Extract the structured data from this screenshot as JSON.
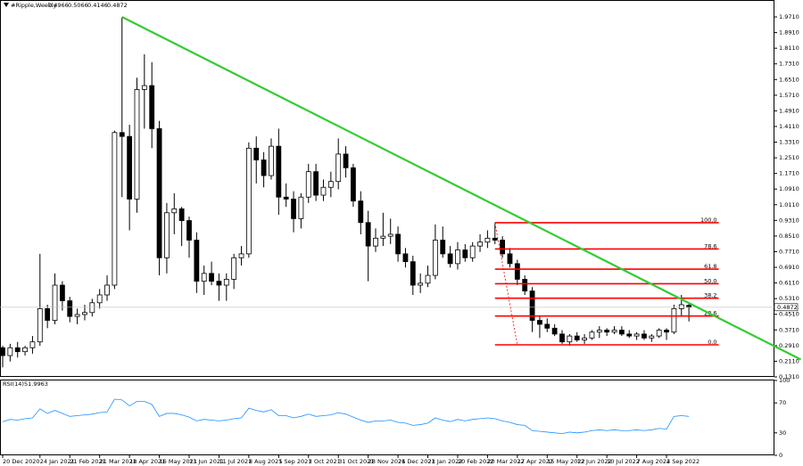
{
  "chart_data": {
    "type": "candlestick",
    "symbol": "#Ripple,Weekly",
    "categories": [
      "20 Dec 2020",
      null,
      null,
      null,
      null,
      "24 Jan 2021",
      null,
      null,
      null,
      "21 Feb 2021",
      null,
      null,
      null,
      "21 Mar 2021",
      null,
      null,
      null,
      "18 Apr 2021",
      null,
      null,
      null,
      "16 May 2021",
      null,
      null,
      null,
      "13 Jun 2021",
      null,
      null,
      null,
      "11 Jul 2021",
      null,
      null,
      null,
      "8 Aug 2021",
      null,
      null,
      null,
      "5 Sep 2021",
      null,
      null,
      null,
      "3 Oct 2021",
      null,
      null,
      null,
      "31 Oct 2021",
      null,
      null,
      null,
      "28 Nov 2021",
      null,
      null,
      null,
      "26 Dec 2021",
      null,
      null,
      null,
      "23 Jan 2022",
      null,
      null,
      null,
      "20 Feb 2022",
      null,
      null,
      null,
      "20 Mar 2022",
      null,
      null,
      null,
      "17 Apr 2022",
      null,
      null,
      null,
      "15 May 2022",
      null,
      null,
      null,
      "12 Jun 2022",
      null,
      null,
      null,
      "10 Jul 2022",
      null,
      null,
      null,
      "7 Aug 2022",
      null,
      null,
      null,
      "4 Sep 2022",
      null,
      null,
      null
    ],
    "open": [
      0.28,
      0.24,
      0.28,
      0.26,
      0.28,
      0.31,
      0.48,
      0.42,
      0.6,
      0.52,
      0.44,
      0.45,
      0.46,
      0.51,
      0.55,
      0.6,
      1.38,
      1.36,
      1.04,
      1.6,
      1.62,
      1.4,
      0.74,
      0.97,
      0.99,
      0.93,
      0.83,
      0.62,
      0.66,
      0.62,
      0.6,
      0.63,
      0.74,
      0.76,
      1.3,
      1.24,
      1.16,
      1.31,
      1.05,
      1.04,
      0.94,
      1.05,
      1.18,
      1.06,
      1.1,
      1.13,
      1.27,
      1.2,
      1.03,
      0.92,
      0.8,
      0.84,
      0.85,
      0.86,
      0.76,
      0.72,
      0.6,
      0.61,
      0.65,
      0.83,
      0.76,
      0.71,
      0.78,
      0.74,
      0.8,
      0.82,
      0.84,
      0.83,
      0.76,
      0.71,
      0.63,
      0.57,
      0.42,
      0.4,
      0.38,
      0.35,
      0.31,
      0.34,
      0.32,
      0.33,
      0.36,
      0.37,
      0.36,
      0.37,
      0.35,
      0.34,
      0.35,
      0.33,
      0.34,
      0.37,
      0.36,
      0.48,
      0.4966
    ],
    "high": [
      0.29,
      0.3,
      0.31,
      0.29,
      0.34,
      0.76,
      0.5,
      0.66,
      0.62,
      0.54,
      0.48,
      0.5,
      0.53,
      0.58,
      0.65,
      1.39,
      1.97,
      1.42,
      1.66,
      1.78,
      1.74,
      1.44,
      1.02,
      1.07,
      1.0,
      0.95,
      0.87,
      0.7,
      0.72,
      0.66,
      0.66,
      0.76,
      0.8,
      1.33,
      1.36,
      1.28,
      1.35,
      1.4,
      1.12,
      1.08,
      1.07,
      1.22,
      1.22,
      1.14,
      1.18,
      1.35,
      1.31,
      1.22,
      1.08,
      0.98,
      0.89,
      0.97,
      0.94,
      0.9,
      0.79,
      0.75,
      0.66,
      0.7,
      0.91,
      0.9,
      0.8,
      0.82,
      0.81,
      0.82,
      0.86,
      0.88,
      0.92,
      0.85,
      0.79,
      0.73,
      0.65,
      0.59,
      0.44,
      0.43,
      0.4,
      0.37,
      0.35,
      0.36,
      0.35,
      0.37,
      0.39,
      0.38,
      0.39,
      0.39,
      0.37,
      0.36,
      0.37,
      0.35,
      0.38,
      0.38,
      0.5,
      0.55,
      0.5066
    ],
    "low": [
      0.18,
      0.21,
      0.23,
      0.24,
      0.25,
      0.29,
      0.38,
      0.4,
      0.47,
      0.41,
      0.4,
      0.42,
      0.44,
      0.48,
      0.52,
      0.58,
      1.05,
      0.88,
      0.97,
      1.4,
      1.3,
      0.65,
      0.66,
      0.86,
      0.8,
      0.74,
      0.56,
      0.55,
      0.6,
      0.52,
      0.52,
      0.58,
      0.7,
      0.74,
      1.12,
      1.1,
      1.14,
      0.96,
      1.0,
      0.87,
      0.89,
      1.02,
      1.03,
      1.03,
      1.05,
      1.09,
      1.15,
      1.0,
      0.86,
      0.62,
      0.77,
      0.8,
      0.81,
      0.72,
      0.69,
      0.55,
      0.56,
      0.59,
      0.63,
      0.74,
      0.69,
      0.68,
      0.72,
      0.72,
      0.77,
      0.79,
      0.81,
      0.74,
      0.69,
      0.6,
      0.55,
      0.36,
      0.33,
      0.36,
      0.34,
      0.3,
      0.29,
      0.31,
      0.3,
      0.32,
      0.33,
      0.34,
      0.35,
      0.34,
      0.33,
      0.32,
      0.32,
      0.31,
      0.33,
      0.32,
      0.35,
      0.44,
      0.4146
    ],
    "close": [
      0.24,
      0.28,
      0.26,
      0.28,
      0.31,
      0.48,
      0.42,
      0.6,
      0.52,
      0.44,
      0.45,
      0.46,
      0.51,
      0.55,
      0.6,
      1.38,
      1.36,
      1.04,
      1.6,
      1.62,
      1.4,
      0.74,
      0.97,
      0.99,
      0.93,
      0.83,
      0.62,
      0.66,
      0.62,
      0.6,
      0.63,
      0.74,
      0.76,
      1.3,
      1.24,
      1.16,
      1.31,
      1.05,
      1.04,
      0.94,
      1.05,
      1.18,
      1.06,
      1.1,
      1.13,
      1.27,
      1.2,
      1.03,
      0.92,
      0.8,
      0.84,
      0.85,
      0.86,
      0.76,
      0.72,
      0.6,
      0.61,
      0.65,
      0.83,
      0.76,
      0.71,
      0.78,
      0.74,
      0.8,
      0.82,
      0.84,
      0.83,
      0.76,
      0.71,
      0.63,
      0.57,
      0.42,
      0.4,
      0.38,
      0.35,
      0.31,
      0.34,
      0.32,
      0.33,
      0.36,
      0.37,
      0.36,
      0.37,
      0.35,
      0.34,
      0.35,
      0.33,
      0.34,
      0.37,
      0.36,
      0.48,
      0.5,
      0.4872
    ],
    "ylim": [
      0.131,
      1.971
    ],
    "yticks": [
      {
        "value": 1.971,
        "label": "1.9710"
      },
      {
        "value": 1.891,
        "label": "1.8910"
      },
      {
        "value": 1.811,
        "label": "1.8110"
      },
      {
        "value": 1.731,
        "label": "1.7310"
      },
      {
        "value": 1.651,
        "label": "1.6510"
      },
      {
        "value": 1.571,
        "label": "1.5710"
      },
      {
        "value": 1.491,
        "label": "1.4910"
      },
      {
        "value": 1.411,
        "label": "1.4110"
      },
      {
        "value": 1.331,
        "label": "1.3310"
      },
      {
        "value": 1.251,
        "label": "1.2510"
      },
      {
        "value": 1.171,
        "label": "1.1710"
      },
      {
        "value": 1.091,
        "label": "1.0910"
      },
      {
        "value": 1.011,
        "label": "1.0110"
      },
      {
        "value": 0.931,
        "label": "0.9310"
      },
      {
        "value": 0.851,
        "label": "0.8510"
      },
      {
        "value": 0.771,
        "label": "0.7710"
      },
      {
        "value": 0.691,
        "label": "0.6910"
      },
      {
        "value": 0.611,
        "label": "0.6110"
      },
      {
        "value": 0.531,
        "label": "0.5310"
      },
      {
        "value": 0.451,
        "label": "0.4510"
      },
      {
        "value": 0.371,
        "label": "0.3710"
      },
      {
        "value": 0.291,
        "label": "0.2910"
      },
      {
        "value": 0.211,
        "label": "0.2110"
      },
      {
        "value": 0.131,
        "label": "0.1310"
      }
    ],
    "trendline": {
      "color": "#33cc33",
      "x": [
        16,
        107
      ],
      "y": [
        1.971,
        0.22
      ]
    },
    "fibonacci": {
      "color": "#ff0000",
      "x": [
        66,
        96
      ],
      "diagonal_x": [
        66,
        69
      ],
      "levels": [
        {
          "label": "100.0",
          "price": 0.919
        },
        {
          "label": "78.6",
          "price": 0.785
        },
        {
          "label": "61.8",
          "price": 0.682
        },
        {
          "label": "50.0",
          "price": 0.607
        },
        {
          "label": "38.2",
          "price": 0.533
        },
        {
          "label": "23.6",
          "price": 0.442
        },
        {
          "label": "0.0",
          "price": 0.295
        }
      ]
    },
    "rsi": {
      "name": "RSI(14)",
      "color": "#1e90ff",
      "values": [
        45,
        48,
        47,
        49,
        50,
        62,
        56,
        60,
        56,
        52,
        53,
        54,
        55,
        57,
        58,
        75,
        74,
        66,
        72,
        72,
        68,
        52,
        56,
        56,
        54,
        51,
        46,
        48,
        47,
        46,
        47,
        49,
        50,
        63,
        60,
        58,
        61,
        53,
        53,
        50,
        52,
        55,
        52,
        53,
        54,
        57,
        55,
        51,
        47,
        44,
        46,
        46,
        47,
        44,
        43,
        40,
        41,
        43,
        50,
        47,
        45,
        48,
        46,
        48,
        49,
        50,
        49,
        46,
        44,
        41,
        40,
        33,
        32,
        31,
        30,
        29,
        31,
        30,
        31,
        33,
        34,
        33,
        34,
        33,
        33,
        34,
        33,
        34,
        36,
        35,
        52,
        53,
        51.9963
      ],
      "ylim": [
        0,
        100
      ],
      "yticks": [
        100,
        70,
        30,
        0
      ]
    }
  }
}
